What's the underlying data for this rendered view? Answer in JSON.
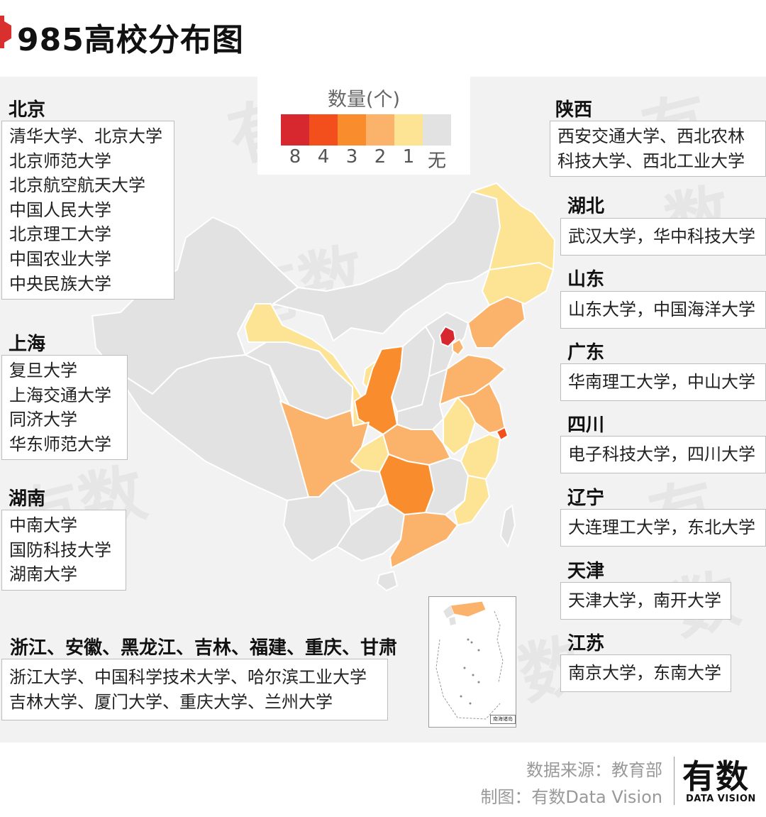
{
  "title": "985高校分布图",
  "legend": {
    "title": "数量(个)",
    "items": [
      {
        "label": "8",
        "color": "#d7272f"
      },
      {
        "label": "4",
        "color": "#f34f1c"
      },
      {
        "label": "3",
        "color": "#f98d2e"
      },
      {
        "label": "2",
        "color": "#fbb36b"
      },
      {
        "label": "1",
        "color": "#fce494"
      },
      {
        "label": "无",
        "color": "#e2e2e2"
      }
    ]
  },
  "regions_left": [
    {
      "name": "北京",
      "universities": [
        "清华大学、北京大学",
        "北京师范大学",
        "北京航空航天大学",
        "中国人民大学",
        "北京理工大学",
        "中国农业大学",
        "中央民族大学"
      ]
    },
    {
      "name": "上海",
      "universities": [
        "复旦大学",
        "上海交通大学",
        "同济大学",
        "华东师范大学"
      ]
    },
    {
      "name": "湖南",
      "universities": [
        "中南大学",
        "国防科技大学",
        "湖南大学"
      ]
    },
    {
      "name": "浙江、安徽、黑龙江、吉林、福建、重庆、甘肃",
      "universities": [
        "浙江大学、中国科学技术大学、哈尔滨工业大学",
        "吉林大学、厦门大学、重庆大学、兰州大学"
      ]
    }
  ],
  "regions_right": [
    {
      "name": "陕西",
      "universities": [
        "西安交通大学、西北农林",
        "科技大学、西北工业大学"
      ]
    },
    {
      "name": "湖北",
      "universities": [
        "武汉大学，华中科技大学"
      ]
    },
    {
      "name": "山东",
      "universities": [
        "山东大学，中国海洋大学"
      ]
    },
    {
      "name": "广东",
      "universities": [
        "华南理工大学，中山大学"
      ]
    },
    {
      "name": "四川",
      "universities": [
        "电子科技大学，四川大学"
      ]
    },
    {
      "name": "辽宁",
      "universities": [
        "大连理工大学，东北大学"
      ]
    },
    {
      "name": "天津",
      "universities": [
        "天津大学，南开大学"
      ]
    },
    {
      "name": "江苏",
      "universities": [
        "南京大学，东南大学"
      ]
    }
  ],
  "map_counts": {
    "北京": 8,
    "上海": 4,
    "湖南": 3,
    "陕西": 3,
    "湖北": 2,
    "山东": 2,
    "广东": 2,
    "四川": 2,
    "辽宁": 2,
    "天津": 2,
    "江苏": 2,
    "浙江": 1,
    "安徽": 1,
    "黑龙江": 1,
    "吉林": 1,
    "福建": 1,
    "重庆": 1,
    "甘肃": 1
  },
  "inset": {
    "label": "南海诸岛"
  },
  "watermark": "有数",
  "footer": {
    "source": "数据来源：教育部",
    "maker": "制图：有数Data Vision",
    "logo_cn": "有数",
    "logo_en": "DATA VISION"
  }
}
